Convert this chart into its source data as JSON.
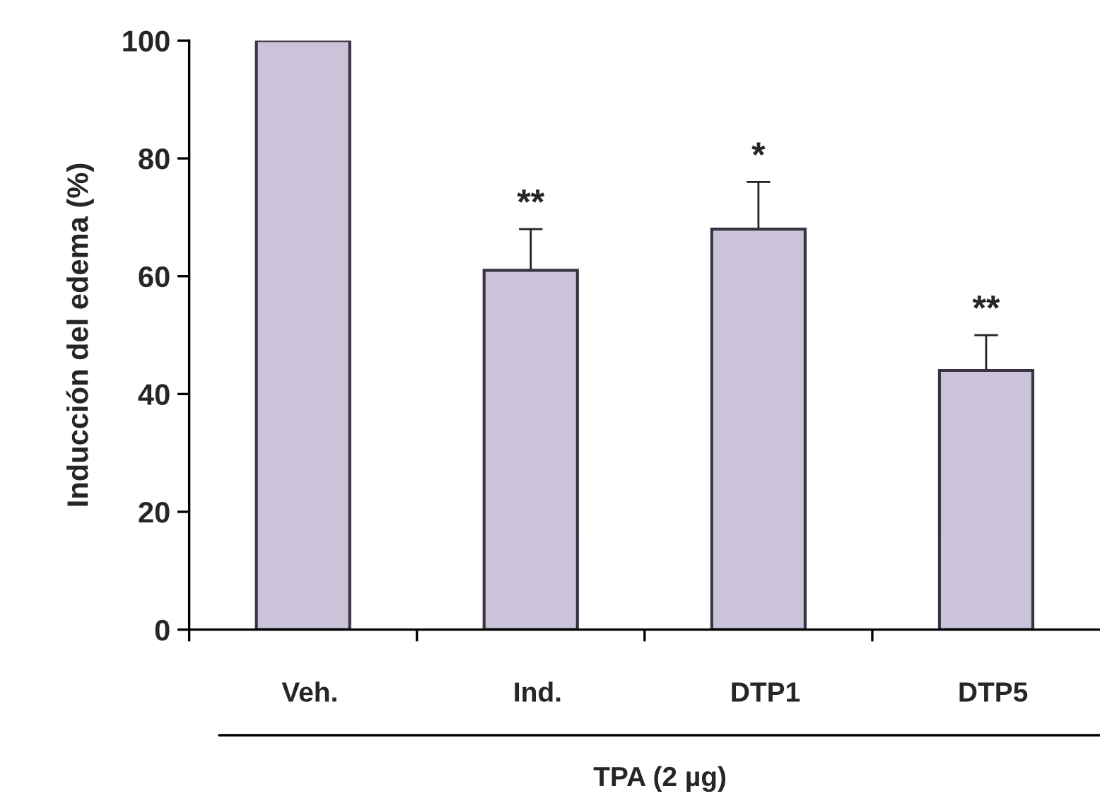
{
  "chart_data": {
    "type": "bar",
    "xlabel": "TPA (2 µg)",
    "ylabel": "Inducción del edema (%)",
    "categories": [
      "Veh.",
      "Ind.",
      "DTP1",
      "DTP5"
    ],
    "values": [
      100,
      61,
      68,
      44
    ],
    "errors": [
      null,
      [
        61,
        68
      ],
      [
        68,
        76
      ],
      [
        44,
        50
      ]
    ],
    "color": "#cbc3d9",
    "ylim": [
      0,
      100
    ],
    "yticks": [
      0,
      20,
      40,
      60,
      80,
      100
    ],
    "grid": false,
    "legend": false,
    "annotations": [
      {
        "text": "**",
        "x": "Ind.",
        "y": 68
      },
      {
        "text": "*",
        "x": "DTP1",
        "y": 76
      },
      {
        "text": "**",
        "x": "DTP5",
        "y": 50
      }
    ]
  }
}
